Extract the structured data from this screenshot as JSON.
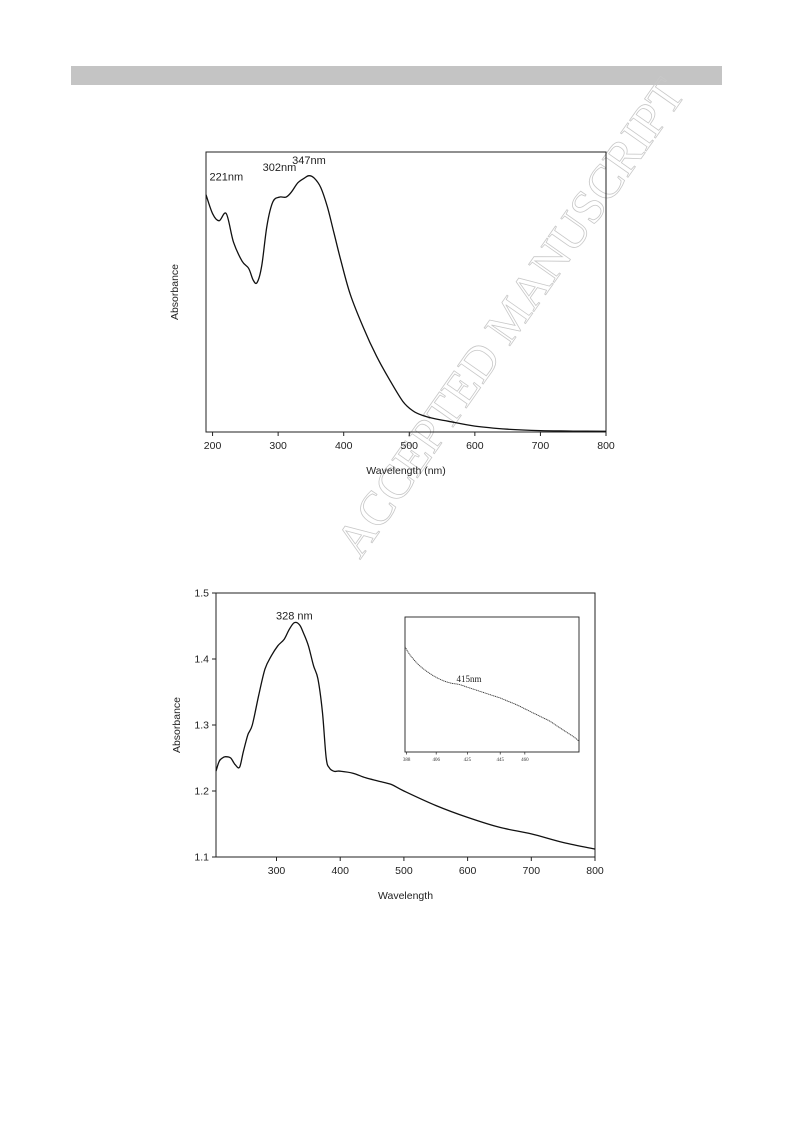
{
  "page": {
    "header_bar_color": "#c4c4c4",
    "watermark": "ACCEPTED MANUSCRIPT"
  },
  "chart_data": [
    {
      "type": "line",
      "xlabel": "Wavelength (nm)",
      "ylabel": "Absorbance",
      "xlim": [
        190,
        800
      ],
      "ylim": [
        0,
        1.18
      ],
      "xticks": [
        200,
        300,
        400,
        500,
        600,
        700,
        800
      ],
      "yticks": [],
      "grid": false,
      "annotations": [
        {
          "text": "221nm",
          "x": 221,
          "y": 1.06
        },
        {
          "text": "302nm",
          "x": 302,
          "y": 1.1
        },
        {
          "text": "347nm",
          "x": 347,
          "y": 1.13
        }
      ],
      "series": [
        {
          "x": [
            190,
            200,
            210,
            221,
            232,
            245,
            255,
            262,
            268,
            275,
            283,
            292,
            302,
            312,
            320,
            330,
            340,
            347,
            355,
            365,
            375,
            385,
            395,
            410,
            430,
            450,
            470,
            490,
            505,
            520,
            540,
            560,
            600,
            650,
            700,
            750,
            800
          ],
          "y": [
            1.0,
            0.92,
            0.89,
            0.92,
            0.8,
            0.72,
            0.69,
            0.64,
            0.63,
            0.7,
            0.87,
            0.97,
            0.99,
            0.99,
            1.01,
            1.05,
            1.07,
            1.08,
            1.07,
            1.03,
            0.95,
            0.84,
            0.73,
            0.58,
            0.44,
            0.32,
            0.22,
            0.13,
            0.09,
            0.07,
            0.055,
            0.045,
            0.025,
            0.012,
            0.006,
            0.004,
            0.003
          ]
        }
      ]
    },
    {
      "type": "line",
      "xlabel": "Wavelength",
      "ylabel": "Absorbance",
      "xlim": [
        205,
        800
      ],
      "ylim": [
        1.1,
        1.5
      ],
      "xticks": [
        300,
        400,
        500,
        600,
        700,
        800
      ],
      "yticks": [
        1.1,
        1.2,
        1.3,
        1.4,
        1.5
      ],
      "grid": false,
      "annotations": [
        {
          "text": "328 nm",
          "x": 328,
          "y": 1.46
        }
      ],
      "series": [
        {
          "x": [
            205,
            210,
            215,
            220,
            228,
            235,
            242,
            248,
            255,
            262,
            272,
            282,
            292,
            302,
            312,
            320,
            328,
            336,
            342,
            350,
            358,
            365,
            372,
            378,
            383,
            390,
            395,
            400,
            420,
            440,
            460,
            480,
            500,
            550,
            600,
            650,
            700,
            750,
            800
          ],
          "y": [
            1.23,
            1.245,
            1.25,
            1.252,
            1.25,
            1.24,
            1.236,
            1.26,
            1.285,
            1.3,
            1.345,
            1.385,
            1.405,
            1.42,
            1.43,
            1.445,
            1.455,
            1.452,
            1.44,
            1.42,
            1.39,
            1.37,
            1.32,
            1.25,
            1.235,
            1.23,
            1.23,
            1.23,
            1.227,
            1.22,
            1.215,
            1.21,
            1.2,
            1.178,
            1.16,
            1.145,
            1.135,
            1.122,
            1.112
          ]
        }
      ],
      "inset": {
        "xlim": [
          387,
          493
        ],
        "ylim": [
          0,
          1
        ],
        "xticks": [
          388,
          406,
          425,
          445,
          460
        ],
        "annotations": [
          {
            "text": "415nm",
            "x": 426,
            "y": 0.52
          }
        ],
        "series": [
          {
            "x": [
              387,
              390,
              395,
              400,
              405,
              410,
              415,
              420,
              425,
              430,
              435,
              440,
              445,
              450,
              455,
              460,
              465,
              470,
              475,
              480,
              485,
              490,
              493
            ],
            "y": [
              0.78,
              0.72,
              0.65,
              0.6,
              0.56,
              0.53,
              0.51,
              0.5,
              0.48,
              0.46,
              0.44,
              0.42,
              0.4,
              0.375,
              0.35,
              0.32,
              0.29,
              0.26,
              0.23,
              0.19,
              0.15,
              0.11,
              0.08
            ]
          }
        ]
      }
    }
  ]
}
